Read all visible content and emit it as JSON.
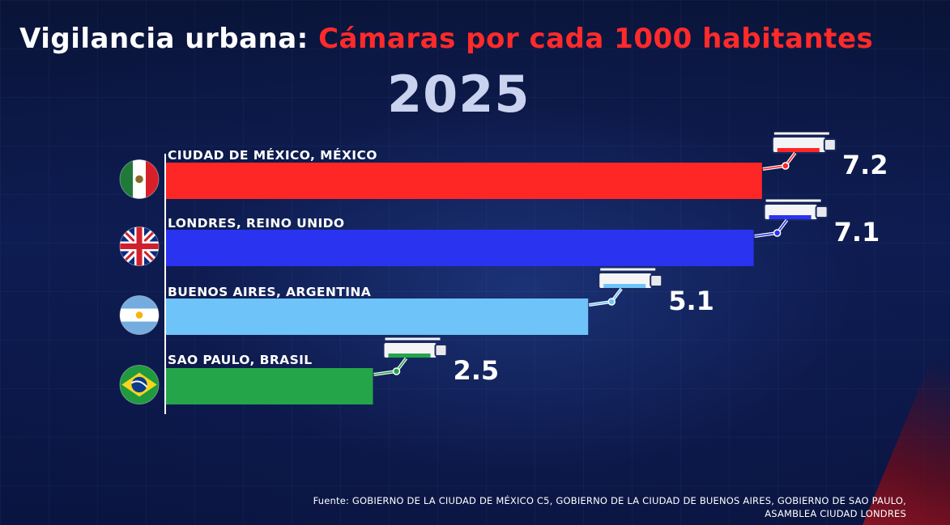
{
  "title": {
    "prefix": "Vigilancia urbana:",
    "highlight": "Cámaras por cada 1000 habitantes"
  },
  "subtitle": "2025",
  "chart_data": {
    "type": "bar",
    "orientation": "horizontal",
    "title": "Vigilancia urbana: Cámaras por cada 1000 habitantes",
    "subtitle": "2025",
    "categories": [
      "CIUDAD DE MÉXICO, MÉXICO",
      "LONDRES, REINO UNIDO",
      "BUENOS AIRES, ARGENTINA",
      "SAO PAULO, BRASIL"
    ],
    "values": [
      7.2,
      7.1,
      5.1,
      2.5
    ],
    "value_labels": [
      "7.2",
      "7.1",
      "5.1",
      "2.5"
    ],
    "bar_colors": [
      "#ff2626",
      "#2a33f0",
      "#6ec3f8",
      "#25a54a"
    ],
    "flags": [
      "mexico-flag",
      "uk-flag",
      "argentina-flag",
      "brazil-flag"
    ],
    "xlim": [
      0,
      7.5
    ],
    "grid": false,
    "icon": "security-camera-icon"
  },
  "source": {
    "line1": "Fuente: GOBIERNO DE LA CIUDAD DE MÉXICO C5, GOBIERNO DE LA CIUDAD DE BUENOS AIRES, GOBIERNO DE SAO PAULO,",
    "line2": "ASAMBLEA CIUDAD LONDRES"
  }
}
